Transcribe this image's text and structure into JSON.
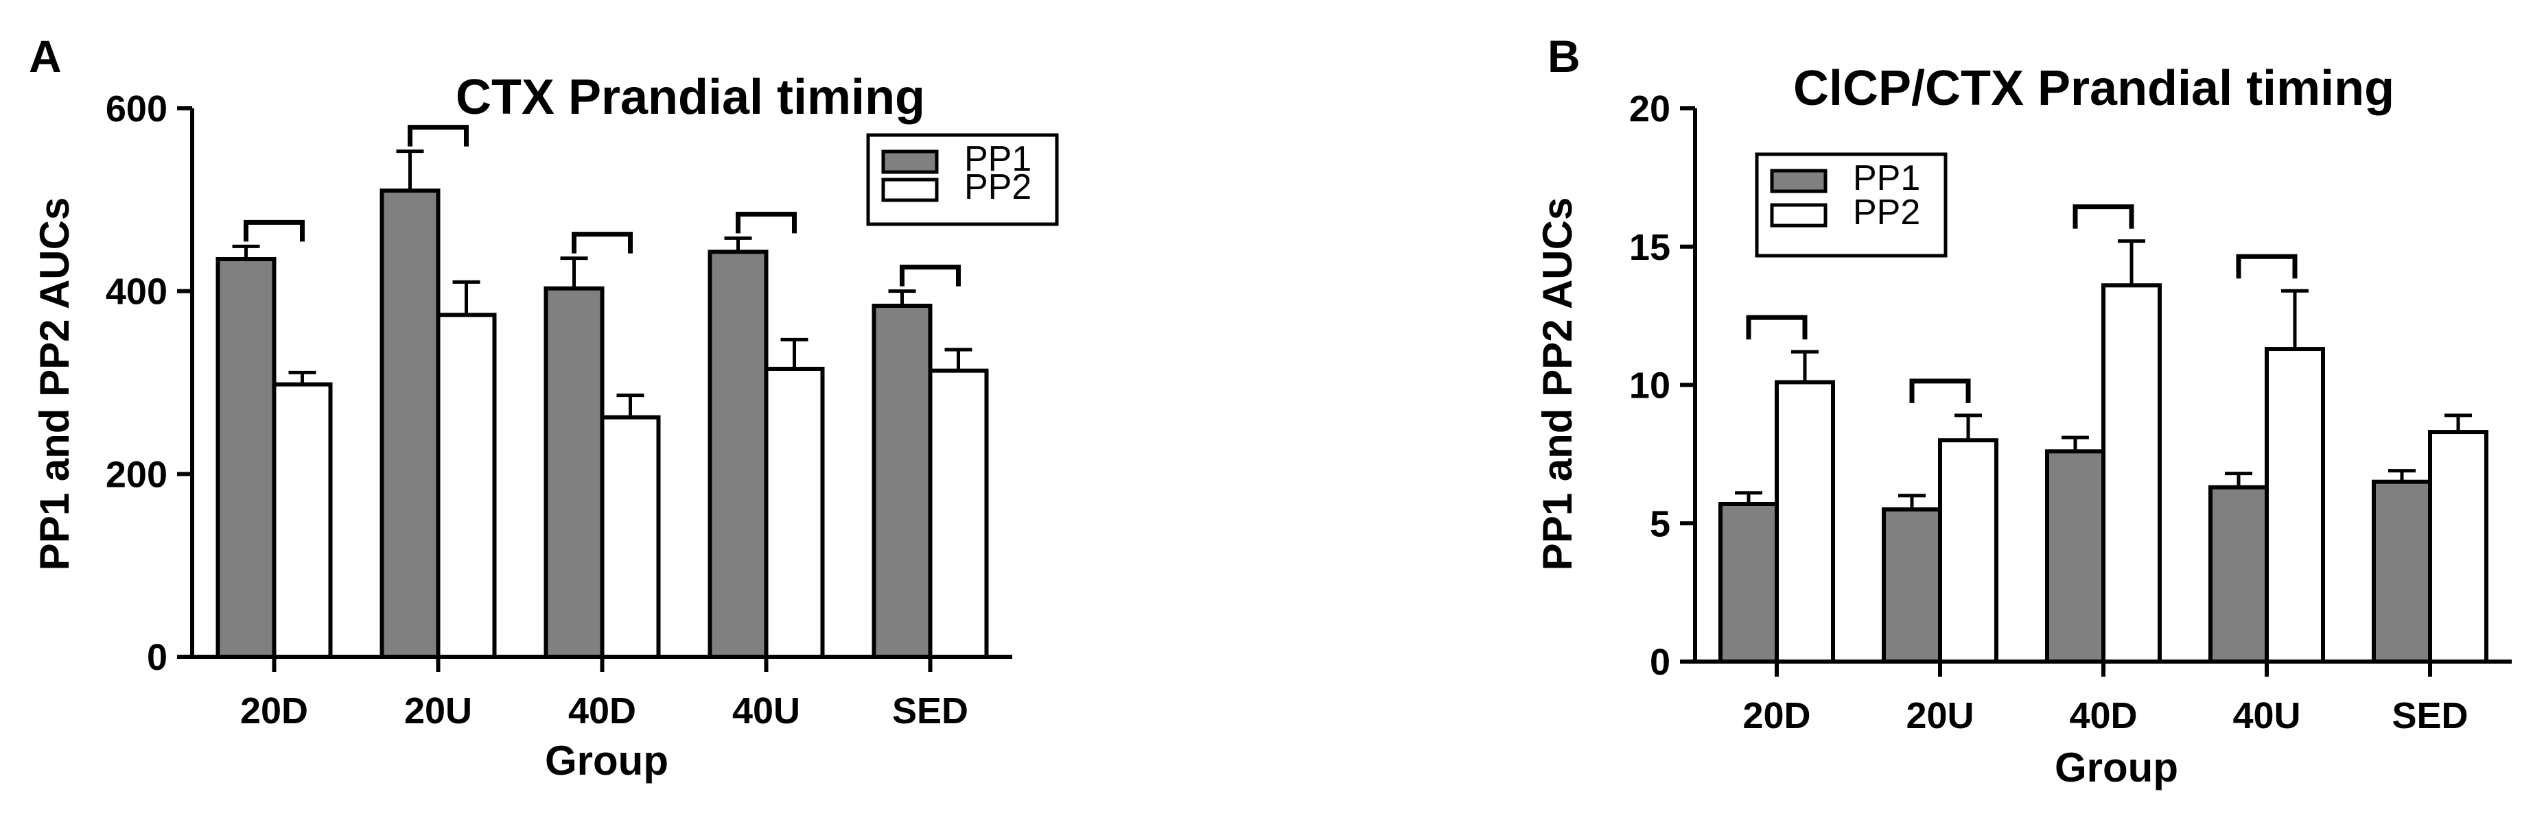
{
  "panels": [
    {
      "label": "A"
    },
    {
      "label": "B"
    }
  ],
  "chart_data": [
    {
      "type": "bar",
      "title": "CTX Prandial timing",
      "xlabel": "Group",
      "ylabel": "PP1 and PP2 AUCs",
      "ylim": [
        0,
        600
      ],
      "yticks": [
        0,
        200,
        400,
        600
      ],
      "categories": [
        "20D",
        "20U",
        "40D",
        "40U",
        "SED"
      ],
      "series": [
        {
          "name": "PP1",
          "color": "#808080",
          "values": [
            435,
            510,
            403,
            443,
            384
          ],
          "errors": [
            14,
            43,
            33,
            15,
            16
          ]
        },
        {
          "name": "PP2",
          "color": "#ffffff",
          "values": [
            298,
            374,
            262,
            315,
            313
          ],
          "errors": [
            13,
            36,
            24,
            32,
            23
          ]
        }
      ],
      "significance_brackets": [
        "20D",
        "20U",
        "40D",
        "40U",
        "SED"
      ],
      "legend_position": "top-right"
    },
    {
      "type": "bar",
      "title": "ClCP/CTX Prandial timing",
      "xlabel": "Group",
      "ylabel": "PP1 and PP2 AUCs",
      "ylim": [
        0,
        20
      ],
      "yticks": [
        0,
        5,
        10,
        15,
        20
      ],
      "categories": [
        "20D",
        "20U",
        "40D",
        "40U",
        "SED"
      ],
      "series": [
        {
          "name": "PP1",
          "color": "#808080",
          "values": [
            5.7,
            5.5,
            7.6,
            6.3,
            6.5
          ],
          "errors": [
            0.4,
            0.5,
            0.5,
            0.5,
            0.4
          ]
        },
        {
          "name": "PP2",
          "color": "#ffffff",
          "values": [
            10.1,
            8.0,
            13.6,
            11.3,
            8.3
          ],
          "errors": [
            1.1,
            0.9,
            1.6,
            2.1,
            0.6
          ]
        }
      ],
      "significance_brackets": [
        "20D",
        "20U",
        "40D",
        "40U"
      ],
      "legend_position": "top-left"
    }
  ]
}
